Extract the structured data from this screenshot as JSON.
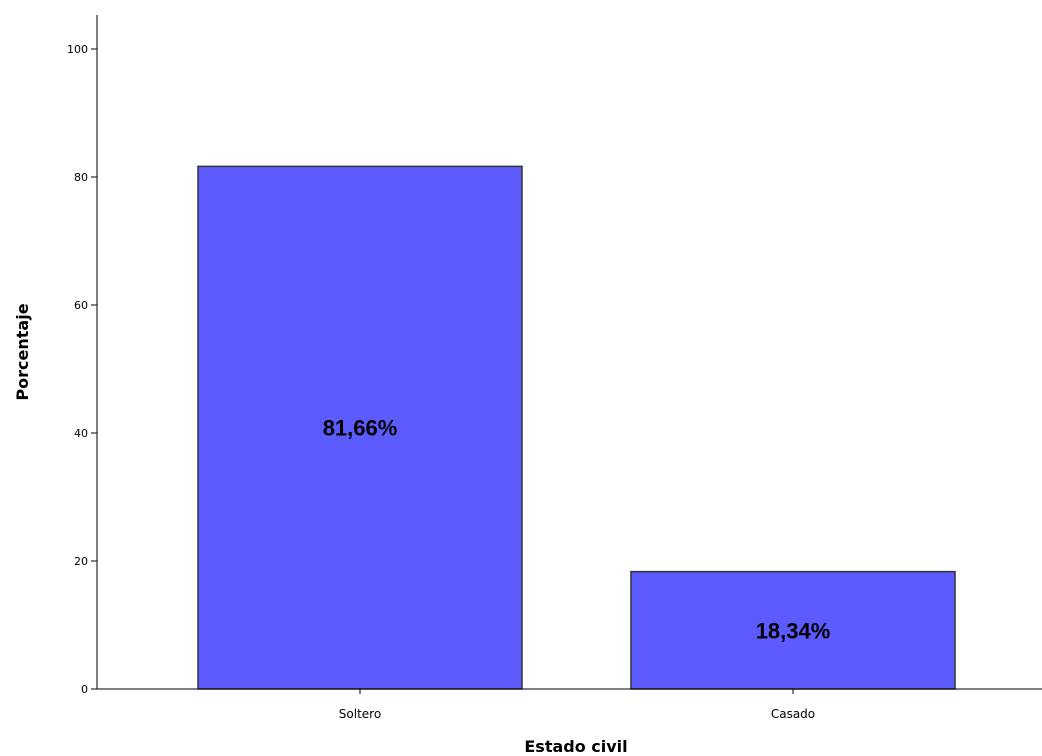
{
  "chart_data": {
    "type": "bar",
    "title": "",
    "xlabel": "Estado civil",
    "ylabel": "Porcentaje",
    "ylim": [
      0,
      100
    ],
    "yticks": [
      0,
      20,
      40,
      60,
      80,
      100
    ],
    "grid": false,
    "legend": "none",
    "categories": [
      "Soltero",
      "Casado"
    ],
    "values": [
      81.66,
      18.34
    ],
    "data_labels": [
      "81,66%",
      "18,34%"
    ],
    "bar_color": "#5b5bff",
    "bar_edge_color": "#333333"
  }
}
